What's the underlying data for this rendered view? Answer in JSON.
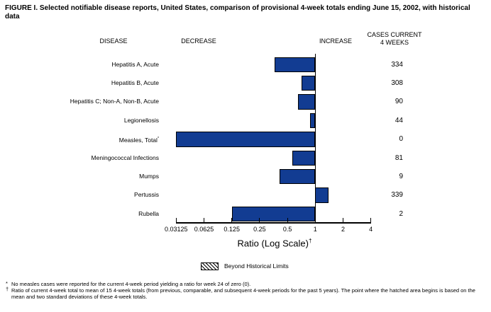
{
  "headers": {
    "disease": "DISEASE",
    "decrease": "DECREASE",
    "increase": "INCREASE",
    "cases_line1": "CASES CURRENT",
    "cases_line2": "4 WEEKS"
  },
  "chart_data": {
    "type": "bar",
    "orientation": "horizontal",
    "scale": "log2",
    "title": "FIGURE I. Selected notifiable disease reports, United States, comparison of provisional 4-week totals ending June 15, 2002, with historical data",
    "xlabel": "Ratio (Log Scale)",
    "xlabel_marker": "†",
    "x_ticks": [
      "0.03125",
      "0.0625",
      "0.125",
      "0.25",
      "0.5",
      "1",
      "2",
      "4"
    ],
    "xlim": [
      0.03125,
      4
    ],
    "baseline_ratio": 1,
    "bar_color": "#123c92",
    "legend_position": "bottom",
    "rows": [
      {
        "disease": "Hepatitis A, Acute",
        "marker": "",
        "ratio": 0.36,
        "cases": "334"
      },
      {
        "disease": "Hepatitis B, Acute",
        "marker": "",
        "ratio": 0.71,
        "cases": "308"
      },
      {
        "disease": "Hepatitis C; Non-A, Non-B, Acute",
        "marker": "",
        "ratio": 0.65,
        "cases": "90"
      },
      {
        "disease": "Legionellosis",
        "marker": "",
        "ratio": 0.88,
        "cases": "44"
      },
      {
        "disease": "Measles, Total",
        "marker": "*",
        "ratio": 0,
        "cases": "0"
      },
      {
        "disease": "Meningococcal Infections",
        "marker": "",
        "ratio": 0.56,
        "cases": "81"
      },
      {
        "disease": "Mumps",
        "marker": "",
        "ratio": 0.41,
        "cases": "9"
      },
      {
        "disease": "Pertussis",
        "marker": "",
        "ratio": 1.39,
        "cases": "339"
      },
      {
        "disease": "Rubella",
        "marker": "",
        "ratio": 0.125,
        "cases": "2"
      }
    ]
  },
  "legend": {
    "label": "Beyond Historical Limits",
    "swatch": "hatched"
  },
  "footnotes": [
    {
      "marker": "*",
      "text": "No measles cases were reported for the current 4-week period yielding a ratio for week 24 of zero (0)."
    },
    {
      "marker": "†",
      "text": "Ratio of current 4-week total to mean of 15 4-week totals (from previous, comparable, and subsequent 4-week periods for the past 5 years). The point where the hatched area begins is based on the mean and two standard deviations of these 4-week totals."
    }
  ]
}
